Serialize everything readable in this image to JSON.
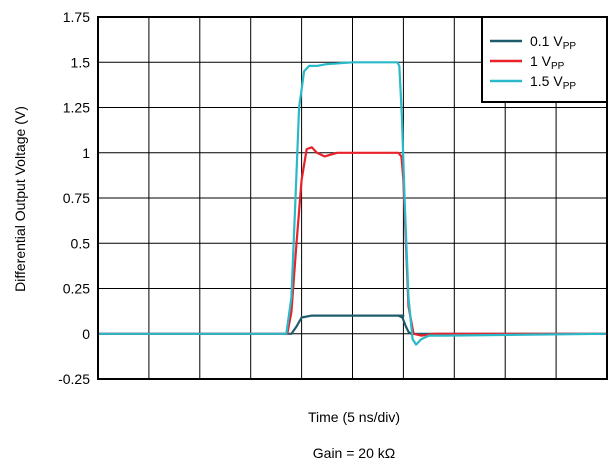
{
  "chart_data": {
    "type": "line",
    "title": "",
    "xlabel": "Time (5 ns/div)",
    "ylabel": "Differential Output Voltage (V)",
    "caption": "Gain = 20 kΩ",
    "ylim": [
      -0.25,
      1.75
    ],
    "xlim": [
      0,
      10
    ],
    "x_divisions": 10,
    "y_ticks": [
      "1.75",
      "1.5",
      "1.25",
      "1",
      "0.75",
      "0.5",
      "0.25",
      "0",
      "-0.25"
    ],
    "y_tick_values": [
      1.75,
      1.5,
      1.25,
      1,
      0.75,
      0.5,
      0.25,
      0,
      -0.25
    ],
    "grid": true,
    "legend_position": "top-right",
    "series": [
      {
        "name": "0.1 V",
        "name_sub": "PP",
        "color": "#1f5c6b",
        "x": [
          0,
          3.6,
          3.8,
          3.9,
          4.0,
          4.2,
          4.4,
          5.0,
          6.0,
          5.9,
          5.98,
          6.05,
          6.1,
          6.15,
          6.3,
          10
        ],
        "y": [
          0,
          0,
          0,
          0.04,
          0.09,
          0.1,
          0.1,
          0.1,
          0.1,
          0.1,
          0.09,
          0.04,
          0.01,
          0.0,
          0,
          0
        ]
      },
      {
        "name": "1 V",
        "name_sub": "PP",
        "color": "#e8212b",
        "x": [
          0,
          3.72,
          3.8,
          3.9,
          4.0,
          4.1,
          4.2,
          4.3,
          4.45,
          4.7,
          5.0,
          5.5,
          5.9,
          5.96,
          6.0,
          6.05,
          6.1,
          6.2,
          6.35,
          6.6,
          10
        ],
        "y": [
          0,
          0,
          0.12,
          0.5,
          0.85,
          1.02,
          1.03,
          1.0,
          0.98,
          1.0,
          1.0,
          1.0,
          1.0,
          0.98,
          0.85,
          0.5,
          0.15,
          0.0,
          -0.01,
          0,
          0
        ]
      },
      {
        "name": "1.5 V",
        "name_sub": "PP",
        "color": "#29b9c9",
        "x": [
          0,
          3.7,
          3.8,
          3.88,
          3.95,
          4.05,
          4.15,
          4.3,
          4.5,
          5.0,
          5.5,
          5.88,
          5.92,
          5.97,
          6.03,
          6.1,
          6.18,
          6.25,
          6.35,
          6.5,
          6.8,
          10
        ],
        "y": [
          0,
          0,
          0.2,
          0.75,
          1.25,
          1.45,
          1.48,
          1.48,
          1.49,
          1.5,
          1.5,
          1.5,
          1.48,
          1.2,
          0.7,
          0.2,
          -0.03,
          -0.06,
          -0.03,
          -0.01,
          -0.01,
          0
        ]
      }
    ]
  }
}
